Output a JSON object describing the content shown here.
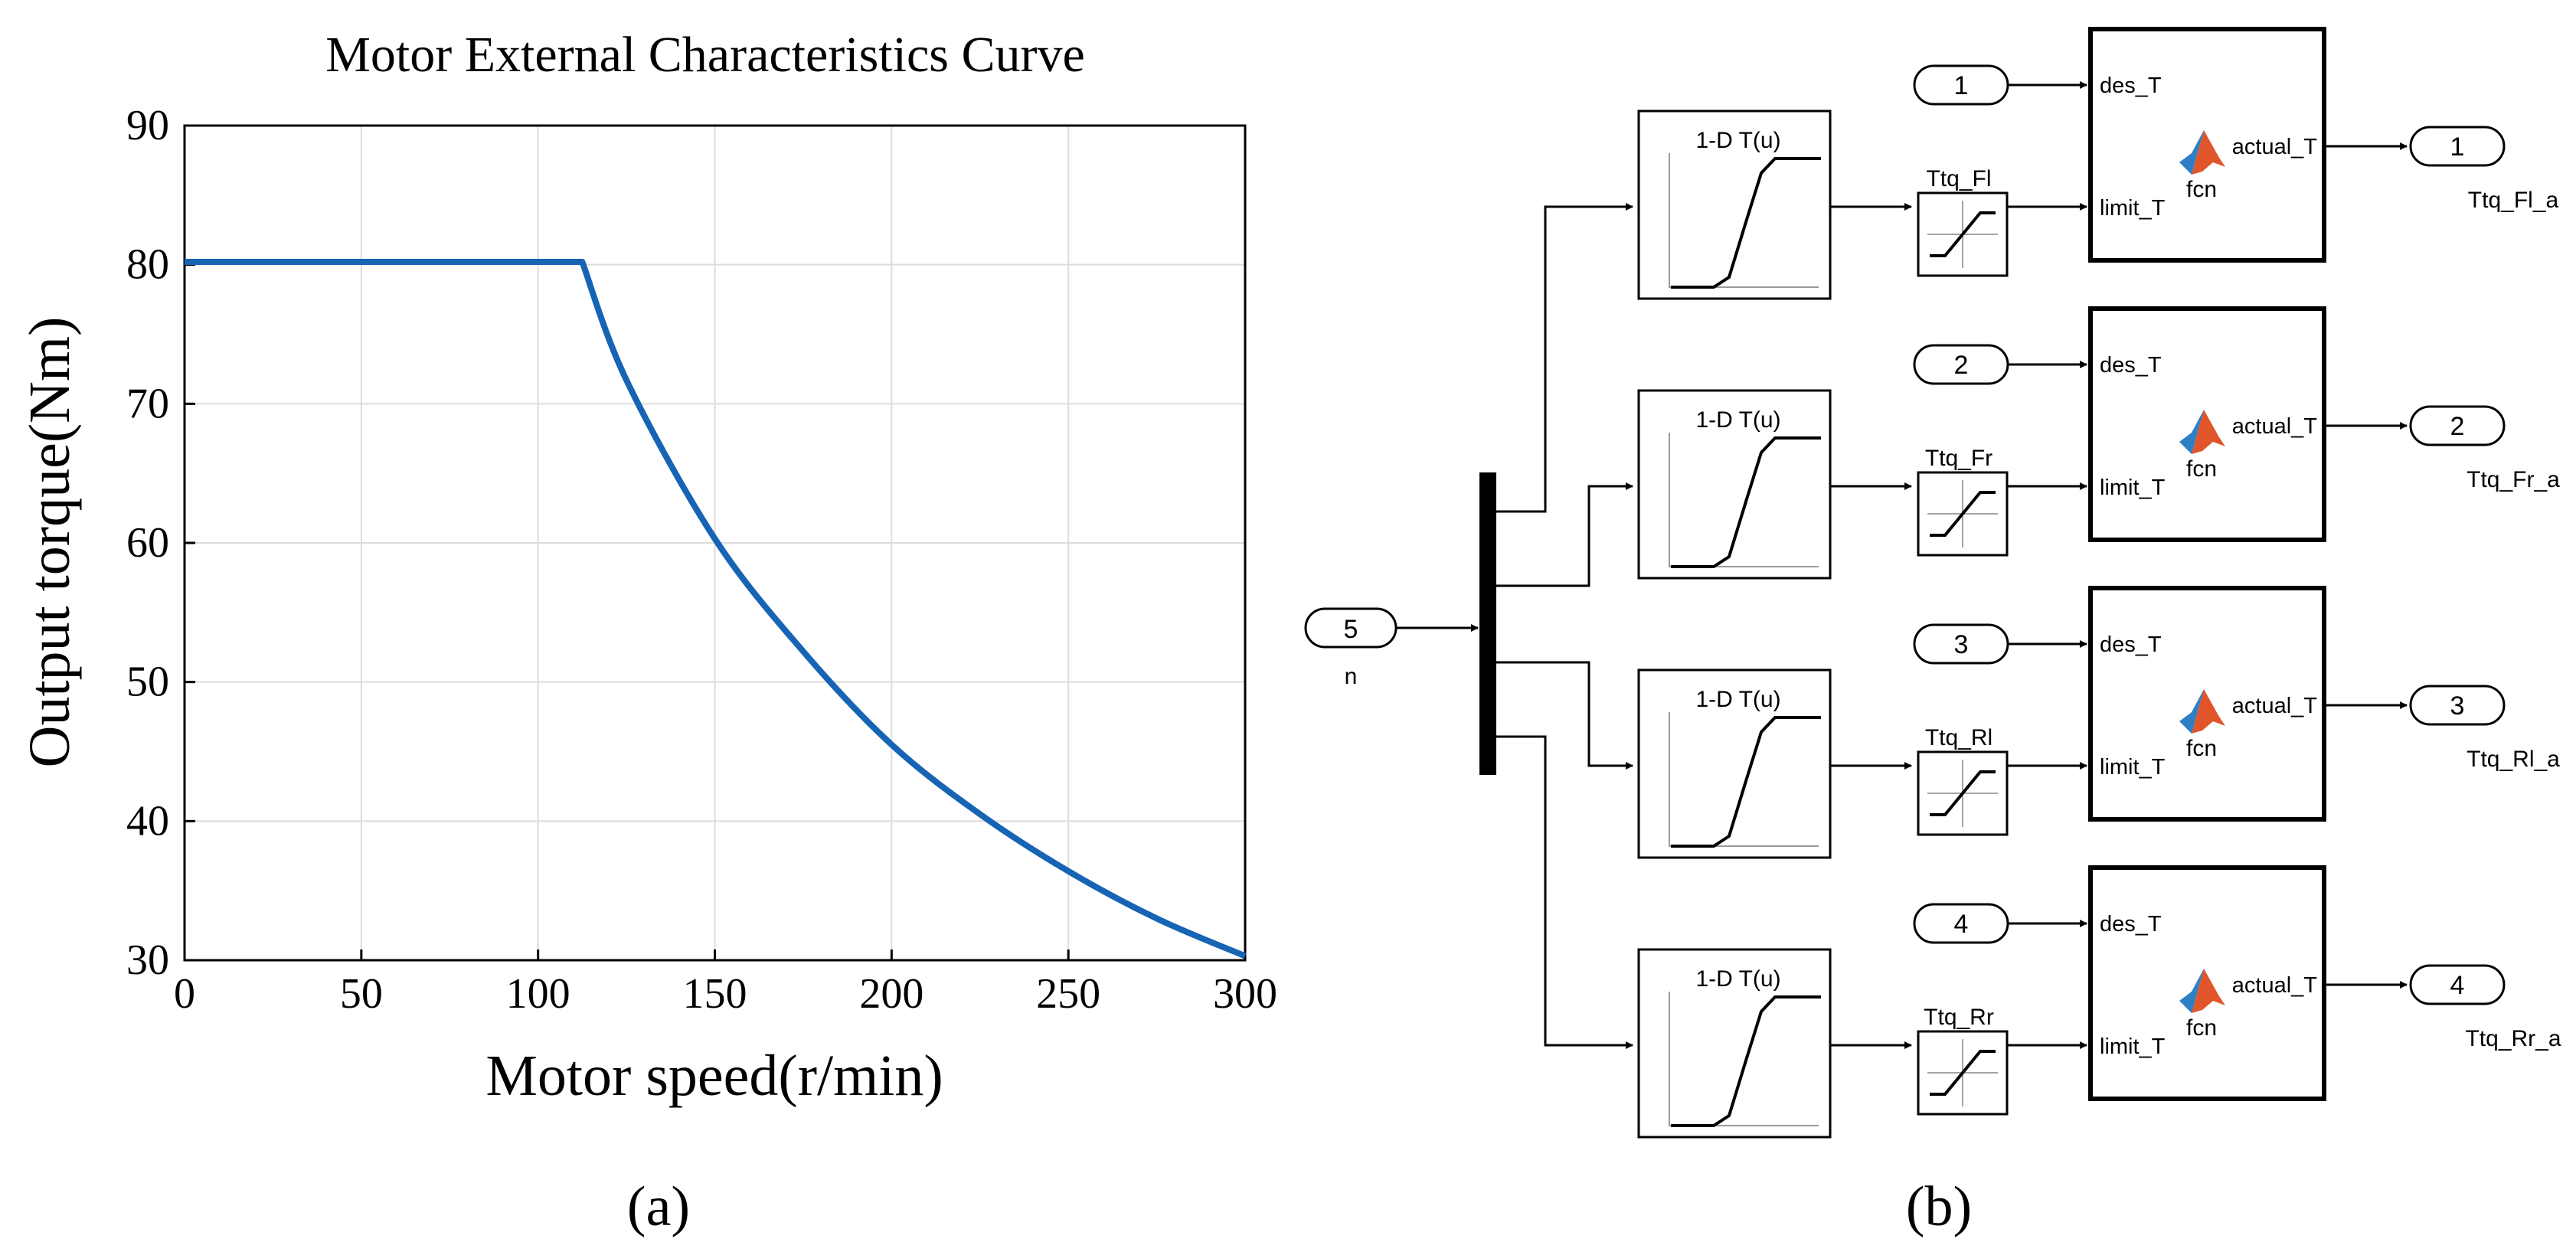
{
  "chart_data": {
    "type": "line",
    "title": "Motor External Characteristics Curve",
    "xlabel": "Motor speed(r/min)",
    "ylabel": "Output torque(Nm)",
    "xlim": [
      0,
      300
    ],
    "ylim": [
      30,
      90
    ],
    "xticks": [
      0,
      50,
      100,
      150,
      200,
      250,
      300
    ],
    "yticks": [
      30,
      40,
      50,
      60,
      70,
      80,
      90
    ],
    "grid": true,
    "color": "#1764b5",
    "series": [
      {
        "name": "Output torque",
        "x": [
          0,
          112.5,
          125,
          150,
          175,
          200,
          225,
          250,
          275,
          300
        ],
        "y": [
          80.2,
          80.2,
          71.7,
          60.3,
          52.2,
          45.5,
          40.5,
          36.4,
          33.0,
          30.3
        ]
      }
    ]
  },
  "captions": {
    "a": "(a)",
    "b": "(b)"
  },
  "diagram": {
    "mux_input": {
      "number": "5",
      "label": "n"
    },
    "lookup_label": "1-D T(u)",
    "fcn_label": "fcn",
    "fcn_in1": "des_T",
    "fcn_in2": "limit_T",
    "fcn_out": "actual_T",
    "accent": "#e0552a",
    "rows": [
      {
        "sat": "Ttq_Fl",
        "in": "1",
        "out": "1",
        "out_label": "Ttq_Fl_a"
      },
      {
        "sat": "Ttq_Fr",
        "in": "2",
        "out": "2",
        "out_label": "Ttq_Fr_a"
      },
      {
        "sat": "Ttq_Rl",
        "in": "3",
        "out": "3",
        "out_label": "Ttq_Rl_a"
      },
      {
        "sat": "Ttq_Rr",
        "in": "4",
        "out": "4",
        "out_label": "Ttq_Rr_a"
      }
    ]
  }
}
